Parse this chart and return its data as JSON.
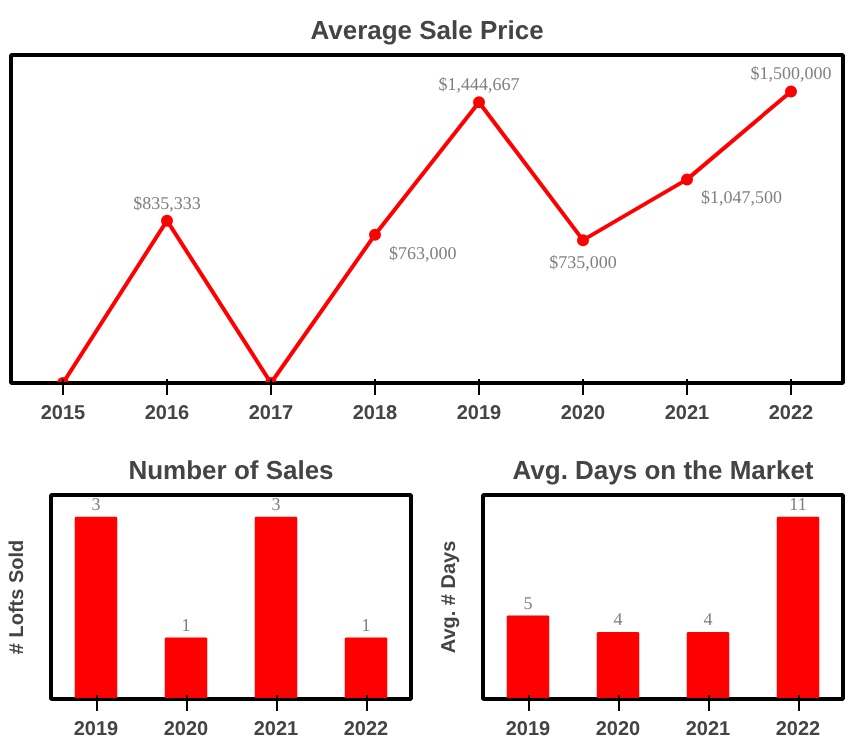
{
  "chart_data": [
    {
      "type": "line",
      "title": "Average Sale Price",
      "categories": [
        "2015",
        "2016",
        "2017",
        "2018",
        "2019",
        "2020",
        "2021",
        "2022"
      ],
      "series": [
        {
          "color": "#ff0000",
          "values": [
            0,
            835333,
            0,
            763000,
            1444667,
            735000,
            1047500,
            1500000
          ],
          "value_labels": [
            null,
            "$835,333",
            null,
            "$763,000",
            "$1,444,667",
            "$735,000",
            "$1,047,500",
            "$1,500,000"
          ]
        }
      ],
      "marker": "circle",
      "line_style": "solid",
      "tick_labels": "x",
      "grid": false
    },
    {
      "type": "bar",
      "title": "Number of Sales",
      "ylabel": "# Lofts Sold",
      "categories": [
        "2019",
        "2020",
        "2021",
        "2022"
      ],
      "series": [
        {
          "color": "#ff0000",
          "values": [
            3,
            1,
            3,
            1
          ]
        }
      ],
      "data_labels": true,
      "tick_labels": "x",
      "grid": false
    },
    {
      "type": "bar",
      "title": "Avg. Days on the Market",
      "ylabel": "Avg. # Days",
      "categories": [
        "2019",
        "2020",
        "2021",
        "2022"
      ],
      "series": [
        {
          "color": "#ff0000",
          "values": [
            5,
            4,
            4,
            11
          ]
        }
      ],
      "data_labels": true,
      "tick_labels": "x",
      "grid": false
    }
  ]
}
